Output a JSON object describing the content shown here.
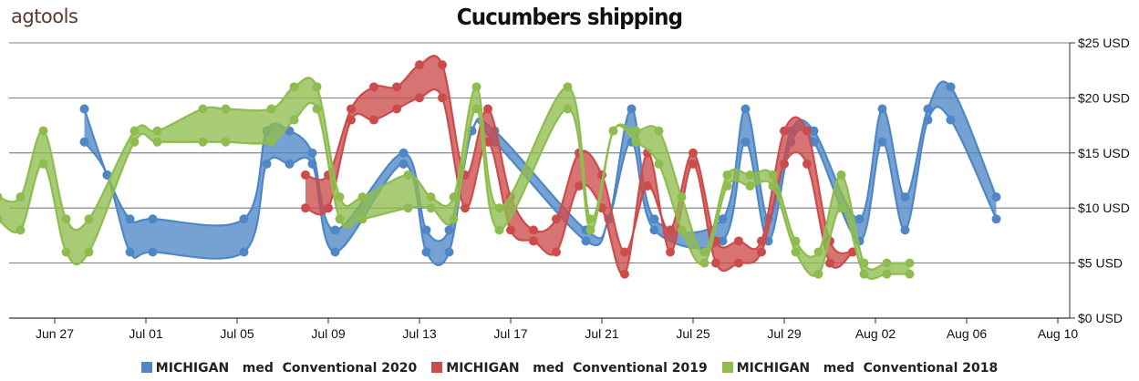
{
  "logo": "agtools",
  "chart_data": {
    "type": "area",
    "title": "Cucumbers shipping",
    "ylim": [
      0,
      25
    ],
    "y_ticks": [
      "$0 USD",
      "$5 USD",
      "$10 USD",
      "$15 USD",
      "$20 USD",
      "$25 USD"
    ],
    "x_ticks": [
      {
        "day": 3,
        "label": "Jun 27"
      },
      {
        "day": 7,
        "label": "Jul 01"
      },
      {
        "day": 11,
        "label": "Jul 05"
      },
      {
        "day": 15,
        "label": "Jul 09"
      },
      {
        "day": 19,
        "label": "Jul 13"
      },
      {
        "day": 23,
        "label": "Jul 17"
      },
      {
        "day": 27,
        "label": "Jul 21"
      },
      {
        "day": 31,
        "label": "Jul 25"
      },
      {
        "day": 35,
        "label": "Jul 29"
      },
      {
        "day": 39,
        "label": "Aug 02"
      },
      {
        "day": 43,
        "label": "Aug 06"
      },
      {
        "day": 47,
        "label": "Aug 10"
      }
    ],
    "x_range": [
      0.5,
      47.2
    ],
    "grid": true,
    "legend_position": "bottom",
    "series": [
      {
        "name": "MICHIGAN   med  Conventional 2020",
        "color": "#4f86c6",
        "points": [
          [
            4.3,
            19,
            16
          ],
          [
            5.3,
            13,
            13
          ],
          [
            6.3,
            9,
            6
          ],
          [
            7.3,
            9,
            6
          ],
          [
            11.3,
            9,
            6
          ],
          [
            12.3,
            17,
            14
          ],
          [
            13.3,
            17,
            14
          ],
          [
            14.3,
            15,
            14
          ],
          [
            15.3,
            8,
            6
          ],
          [
            18.3,
            15,
            14
          ],
          [
            19.3,
            8,
            6
          ],
          [
            20.3,
            8,
            6
          ],
          [
            21.3,
            17,
            17
          ],
          [
            22.3,
            17,
            16
          ],
          [
            26.3,
            8,
            7
          ],
          [
            27.3,
            9,
            9
          ],
          [
            28.3,
            19,
            16
          ],
          [
            29.3,
            9,
            8
          ],
          [
            32.3,
            9,
            7
          ],
          [
            33.3,
            19,
            16
          ],
          [
            34.3,
            9,
            7
          ],
          [
            35.3,
            17,
            16
          ],
          [
            36.3,
            17,
            16
          ],
          [
            38.3,
            9,
            7
          ],
          [
            39.3,
            19,
            16
          ],
          [
            40.3,
            11,
            8
          ],
          [
            41.3,
            19,
            18
          ],
          [
            42.3,
            21,
            18
          ],
          [
            44.3,
            11,
            9
          ]
        ]
      },
      {
        "name": "MICHIGAN   med  Conventional 2019",
        "color": "#cc4c4c",
        "points": [
          [
            14.0,
            13,
            10
          ],
          [
            15.0,
            13,
            10
          ],
          [
            16.0,
            19,
            18
          ],
          [
            17.0,
            21,
            18
          ],
          [
            18.0,
            21,
            19
          ],
          [
            19.0,
            23,
            20
          ],
          [
            20.0,
            23,
            20
          ],
          [
            21.0,
            13,
            10
          ],
          [
            22.0,
            19,
            16
          ],
          [
            23.0,
            11,
            8
          ],
          [
            24.0,
            8,
            7
          ],
          [
            25.0,
            9,
            6
          ],
          [
            26.0,
            15,
            12
          ],
          [
            27.0,
            13,
            10
          ],
          [
            28.0,
            6,
            4
          ],
          [
            29.0,
            12,
            15
          ],
          [
            30.0,
            8,
            6
          ],
          [
            31.0,
            15,
            14
          ],
          [
            32.0,
            7,
            5
          ],
          [
            33.0,
            7,
            5
          ],
          [
            34.0,
            7,
            6
          ],
          [
            35.0,
            17,
            14
          ],
          [
            36.0,
            17,
            14
          ],
          [
            37.0,
            7,
            5
          ],
          [
            38.0,
            6,
            6
          ]
        ]
      },
      {
        "name": "MICHIGAN   med  Conventional 2018",
        "color": "#8fbc4f",
        "points": [
          [
            0.5,
            11,
            9
          ],
          [
            1.5,
            11,
            8
          ],
          [
            2.5,
            17,
            14
          ],
          [
            3.5,
            9,
            6
          ],
          [
            4.5,
            9,
            6
          ],
          [
            6.5,
            17,
            16
          ],
          [
            7.5,
            17,
            16
          ],
          [
            9.5,
            19,
            16
          ],
          [
            10.5,
            19,
            16
          ],
          [
            12.5,
            19,
            16
          ],
          [
            13.5,
            21,
            18
          ],
          [
            14.5,
            21,
            19
          ],
          [
            15.5,
            11,
            9
          ],
          [
            16.5,
            11,
            9
          ],
          [
            18.5,
            13,
            10
          ],
          [
            19.5,
            11,
            10
          ],
          [
            20.5,
            11,
            9
          ],
          [
            21.5,
            21,
            19
          ],
          [
            22.5,
            10,
            8
          ],
          [
            25.5,
            21,
            19
          ],
          [
            26.5,
            9,
            8
          ],
          [
            27.5,
            17,
            17
          ],
          [
            28.5,
            17,
            16
          ],
          [
            29.5,
            17,
            14
          ],
          [
            30.5,
            11,
            8
          ],
          [
            31.5,
            6,
            5
          ],
          [
            32.5,
            13,
            12
          ],
          [
            33.5,
            13,
            12
          ],
          [
            34.5,
            13,
            12
          ],
          [
            35.5,
            7,
            6
          ],
          [
            36.5,
            6,
            4
          ],
          [
            37.5,
            13,
            10
          ],
          [
            38.5,
            5,
            4
          ],
          [
            39.5,
            5,
            4
          ],
          [
            40.5,
            5,
            4
          ]
        ]
      }
    ]
  }
}
